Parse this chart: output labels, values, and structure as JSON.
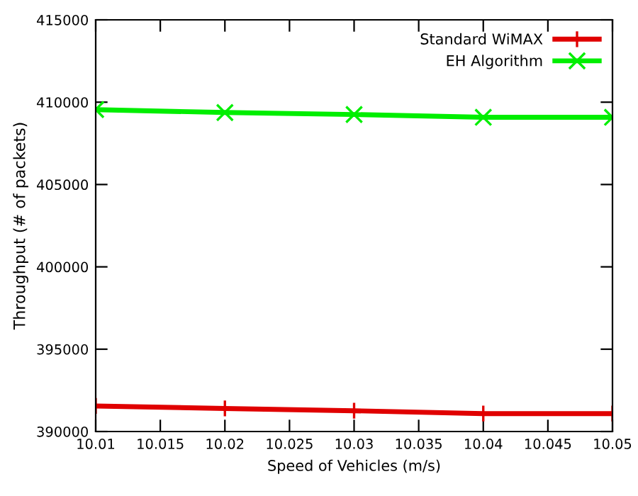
{
  "chart_data": {
    "type": "line",
    "xlabel": "Speed of Vehicles (m/s)",
    "ylabel": "Throughput (# of packets)",
    "x": [
      10.01,
      10.02,
      10.03,
      10.04,
      10.05
    ],
    "series": [
      {
        "name": "Standard WiMAX",
        "color": "#e00000",
        "marker": "plus",
        "values": [
          391550,
          391400,
          391260,
          391090,
          391090
        ]
      },
      {
        "name": "EH Algorithm",
        "color": "#00ee00",
        "marker": "cross",
        "values": [
          409550,
          409370,
          409250,
          409080,
          409080
        ]
      }
    ],
    "xlim": [
      10.01,
      10.05
    ],
    "xticks": [
      10.01,
      10.015,
      10.02,
      10.025,
      10.03,
      10.035,
      10.04,
      10.045,
      10.05
    ],
    "ylim": [
      390000,
      415000
    ],
    "yticks": [
      390000,
      395000,
      400000,
      405000,
      410000,
      415000
    ],
    "legend": "top right",
    "grid": false
  }
}
